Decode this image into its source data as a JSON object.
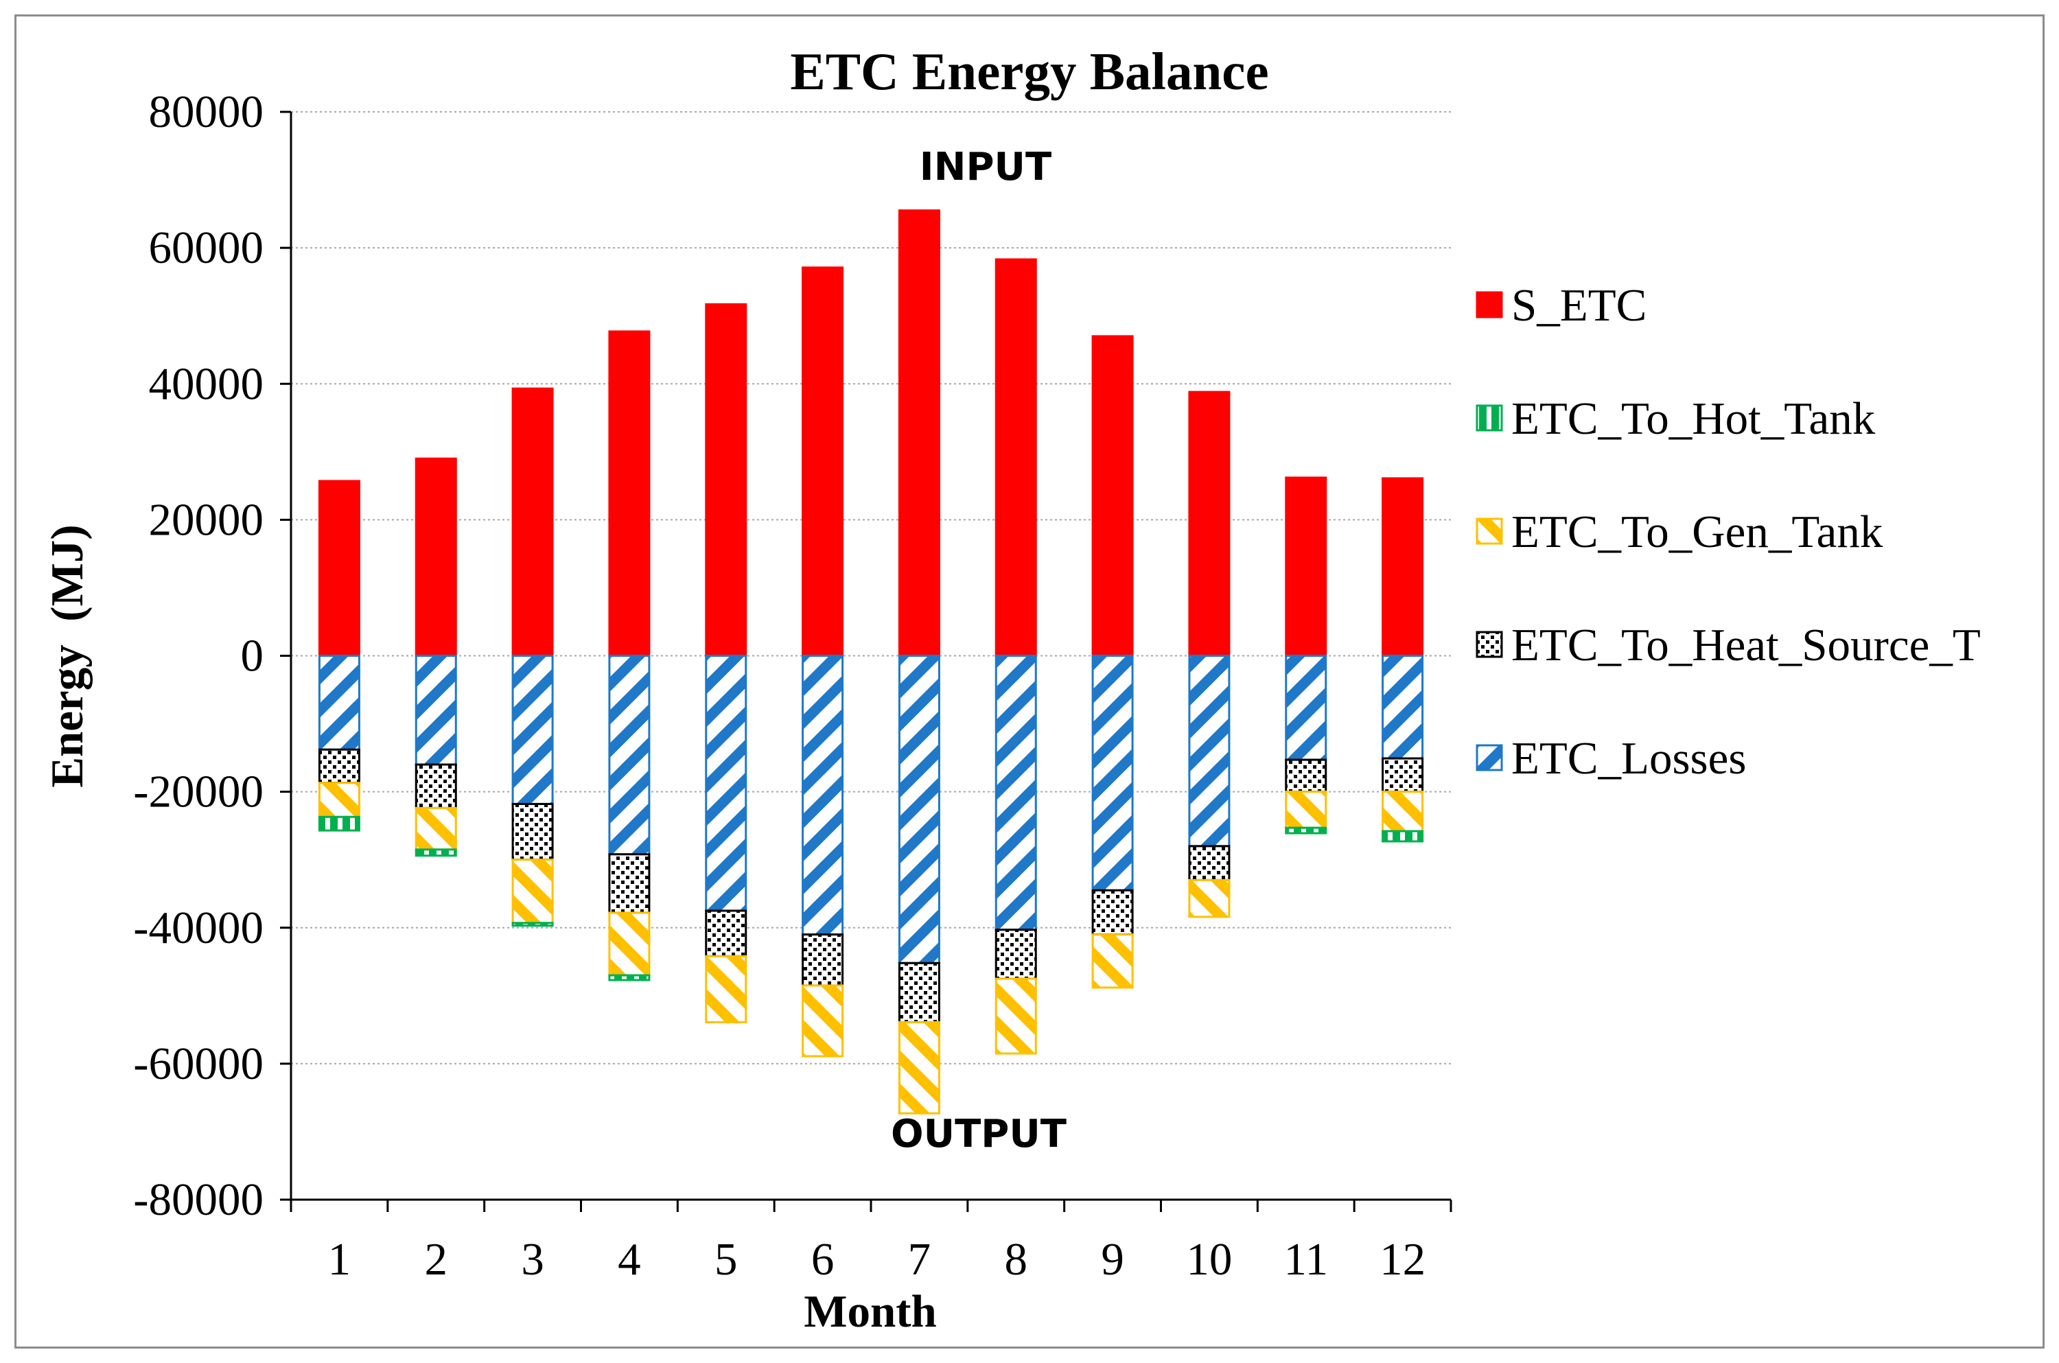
{
  "chart_data": {
    "type": "bar",
    "stacked": true,
    "title": "ETC Energy Balance",
    "xlabel": "Month",
    "ylabel": "Energy  (MJ)",
    "ylim": [
      -80000,
      80000
    ],
    "yticks": [
      80000,
      60000,
      40000,
      20000,
      0,
      -20000,
      -40000,
      -60000,
      -80000
    ],
    "categories": [
      "1",
      "2",
      "3",
      "4",
      "5",
      "6",
      "7",
      "8",
      "9",
      "10",
      "11",
      "12"
    ],
    "grid": "horizontal dotted",
    "legend_position": "right",
    "annotations": {
      "input": "INPUT",
      "output": "OUTPUT"
    },
    "series": [
      {
        "name": "S_ETC",
        "color": "#ff0000",
        "pattern": "solid",
        "values": [
          25700,
          29000,
          39300,
          47700,
          51700,
          57100,
          65500,
          58300,
          47000,
          38800,
          26200,
          26100
        ]
      },
      {
        "name": "ETC_Losses",
        "color": "#1f78c8",
        "pattern": "wide-diagonal-down",
        "values": [
          -13800,
          -16000,
          -21800,
          -29200,
          -37500,
          -41000,
          -45200,
          -40300,
          -34500,
          -28000,
          -15300,
          -15100
        ]
      },
      {
        "name": "ETC_To_Heat_Source_T",
        "color": "#000000",
        "pattern": "dotted",
        "values": [
          -4900,
          -6400,
          -8200,
          -8600,
          -6700,
          -7500,
          -8700,
          -7200,
          -6500,
          -5000,
          -4700,
          -4900
        ]
      },
      {
        "name": "ETC_To_Gen_Tank",
        "color": "#ffc000",
        "pattern": "wide-diagonal-up",
        "values": [
          -5000,
          -6100,
          -9300,
          -9200,
          -9700,
          -10400,
          -13400,
          -11000,
          -7800,
          -5400,
          -5300,
          -5800
        ]
      },
      {
        "name": "ETC_To_Hot_Tank",
        "color": "#00b050",
        "pattern": "vertical-stripes",
        "values": [
          -2000,
          -900,
          -400,
          -700,
          0,
          0,
          0,
          0,
          0,
          0,
          -800,
          -1500
        ]
      }
    ],
    "legend_order": [
      "S_ETC",
      "ETC_To_Hot_Tank",
      "ETC_To_Gen_Tank",
      "ETC_To_Heat_Source_T",
      "ETC_Losses"
    ]
  }
}
